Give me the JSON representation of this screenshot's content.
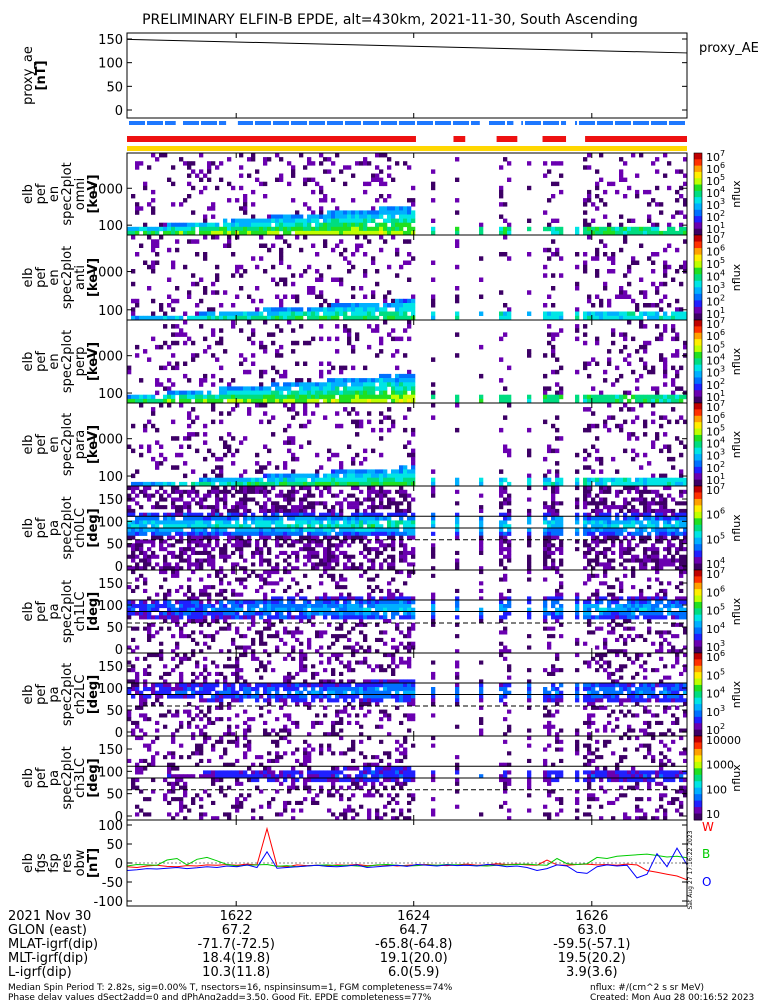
{
  "title": "PRELIMINARY ELFIN-B EPDE, alt=430km, 2021-11-30, South Ascending",
  "colors": {
    "ae_line": "#000000",
    "bar_blue": "#1e78ff",
    "bar_red": "#ee1111",
    "bar_yellow": "#ffd700",
    "mag_w": "#ff0000",
    "mag_b": "#00cc00",
    "mag_o": "#0000ff"
  },
  "colormap": [
    "#ffffff",
    "#3d0066",
    "#6a00b0",
    "#2020ff",
    "#0070ff",
    "#00b0ff",
    "#00e5e5",
    "#00dd80",
    "#20e020",
    "#bfff00",
    "#ffee00",
    "#ffa000",
    "#ff3000",
    "#c00000"
  ],
  "time_ticks": [
    "1622",
    "1624",
    "1626"
  ],
  "bars": {
    "blue_segments": [
      [
        0,
        0.087
      ],
      [
        0.1,
        0.177
      ],
      [
        0.198,
        0.63
      ],
      [
        0.645,
        0.69
      ],
      [
        0.704,
        0.784
      ],
      [
        0.8,
        1.0
      ]
    ],
    "red_segments": [
      [
        0,
        0.516
      ],
      [
        0.583,
        0.604
      ],
      [
        0.66,
        0.697
      ],
      [
        0.742,
        0.784
      ],
      [
        0.818,
        1.0
      ]
    ],
    "yellow_segments": [
      [
        0,
        1.0
      ]
    ]
  },
  "panels": [
    {
      "id": "ae",
      "ylabel": [
        "proxy_ae",
        "[nT]"
      ],
      "side_label": "proxy_AE",
      "yticks": [
        "150",
        "100",
        "50",
        "0"
      ]
    },
    {
      "id": "en1",
      "ylabel": [
        "elb",
        "pef",
        "en",
        "spec2plot",
        "omni",
        "[keV]"
      ],
      "yticks": [
        "1000",
        "100"
      ],
      "cb_label": "nflux",
      "cb_ticks": [
        [
          "10",
          "7"
        ],
        [
          "10",
          "6"
        ],
        [
          "10",
          "5"
        ],
        [
          "10",
          "4"
        ],
        [
          "10",
          "3"
        ],
        [
          "10",
          "2"
        ],
        [
          "10",
          "1"
        ]
      ]
    },
    {
      "id": "en2",
      "ylabel": [
        "elb",
        "pef",
        "en",
        "spec2plot",
        "anti",
        "[keV]"
      ],
      "yticks": [
        "1000",
        "100"
      ],
      "cb_label": "nflux",
      "cb_ticks": [
        [
          "10",
          "7"
        ],
        [
          "10",
          "6"
        ],
        [
          "10",
          "5"
        ],
        [
          "10",
          "4"
        ],
        [
          "10",
          "3"
        ],
        [
          "10",
          "2"
        ],
        [
          "10",
          "1"
        ]
      ]
    },
    {
      "id": "en3",
      "ylabel": [
        "elb",
        "pef",
        "en",
        "spec2plot",
        "perp",
        "[keV]"
      ],
      "yticks": [
        "1000",
        "100"
      ],
      "cb_label": "nflux",
      "cb_ticks": [
        [
          "10",
          "7"
        ],
        [
          "10",
          "6"
        ],
        [
          "10",
          "5"
        ],
        [
          "10",
          "4"
        ],
        [
          "10",
          "3"
        ],
        [
          "10",
          "2"
        ],
        [
          "10",
          "1"
        ]
      ]
    },
    {
      "id": "en4",
      "ylabel": [
        "elb",
        "pef",
        "en",
        "spec2plot",
        "para",
        "[keV]"
      ],
      "yticks": [
        "1000",
        "100"
      ],
      "cb_label": "nflux",
      "cb_ticks": [
        [
          "10",
          "7"
        ],
        [
          "10",
          "6"
        ],
        [
          "10",
          "5"
        ],
        [
          "10",
          "4"
        ],
        [
          "10",
          "3"
        ],
        [
          "10",
          "2"
        ],
        [
          "10",
          "1"
        ]
      ]
    },
    {
      "id": "pa0",
      "ylabel": [
        "elb",
        "pef",
        "pa",
        "spec2plot",
        "ch0LC",
        "[deg]"
      ],
      "yticks": [
        "150",
        "100",
        "50",
        "0"
      ],
      "cb_label": "nflux",
      "cb_ticks": [
        [
          "10",
          "7"
        ],
        [
          "10",
          "6"
        ],
        [
          "10",
          "5"
        ],
        [
          "10",
          "4"
        ]
      ]
    },
    {
      "id": "pa1",
      "ylabel": [
        "elb",
        "pef",
        "pa",
        "spec2plot",
        "ch1LC",
        "[deg]"
      ],
      "yticks": [
        "150",
        "100",
        "50",
        "0"
      ],
      "cb_label": "nflux",
      "cb_ticks": [
        [
          "10",
          "7"
        ],
        [
          "10",
          "6"
        ],
        [
          "10",
          "5"
        ],
        [
          "10",
          "4"
        ],
        [
          "10",
          "3"
        ]
      ]
    },
    {
      "id": "pa2",
      "ylabel": [
        "elb",
        "pef",
        "pa",
        "spec2plot",
        "ch2LC",
        "[deg]"
      ],
      "yticks": [
        "150",
        "100",
        "50",
        "0"
      ],
      "cb_label": "nflux",
      "cb_ticks": [
        [
          "10",
          "6"
        ],
        [
          "10",
          "5"
        ],
        [
          "10",
          "4"
        ],
        [
          "10",
          "3"
        ],
        [
          "10",
          "2"
        ]
      ]
    },
    {
      "id": "pa3",
      "ylabel": [
        "elb",
        "pef",
        "pa",
        "spec2plot",
        "ch3LC",
        "[deg]"
      ],
      "yticks": [
        "150",
        "100",
        "50",
        "0"
      ],
      "cb_label": "nflux",
      "cb_ticks": [
        [
          "10000",
          ""
        ],
        [
          "1000",
          ""
        ],
        [
          "100",
          ""
        ],
        [
          "10",
          ""
        ]
      ]
    },
    {
      "id": "mag",
      "ylabel": [
        "elb",
        "fgs",
        "fsp",
        "res",
        "obw",
        "[nT]"
      ],
      "yticks": [
        "100",
        "50",
        "0",
        "-50",
        "-100"
      ],
      "mag_labels": [
        "W",
        "B",
        "O"
      ],
      "side_small": "Sat Aug 27 17:16:22 2023"
    }
  ],
  "chart_data": {
    "type": "heatmap",
    "title": "PRELIMINARY ELFIN-B EPDE, alt=430km, 2021-11-30, South Ascending",
    "x": [
      "1622",
      "1624",
      "1626"
    ],
    "proxy_ae": {
      "x_fraction": [
        0,
        1
      ],
      "values": [
        155,
        126
      ],
      "ylim": [
        0,
        160
      ]
    },
    "energy_ylim_keV": [
      60,
      6000
    ],
    "pitch_angle_ylim_deg": [
      0,
      180
    ],
    "mag_residuals": {
      "ylim": [
        -110,
        110
      ],
      "series": [
        {
          "name": "W",
          "values": [
            -10,
            -12,
            -8,
            -6,
            -9,
            -10,
            -7,
            -8,
            -5,
            -6,
            -4,
            -6,
            -3,
            -5,
            92,
            -8,
            -10,
            -5,
            -7,
            -6,
            -8,
            -5,
            -6,
            -4,
            -7,
            -6,
            -5,
            -8,
            -6,
            -5,
            -4,
            -6,
            -7,
            -5,
            -3,
            -6,
            -5,
            -2,
            -4,
            -3,
            -5,
            -6,
            8,
            -5,
            -6,
            -4,
            -3,
            -5,
            -4,
            -6,
            -3,
            -5,
            -20,
            -25,
            -30,
            -35,
            -45
          ]
        },
        {
          "name": "B",
          "values": [
            -8,
            -4,
            -5,
            -6,
            8,
            12,
            -5,
            10,
            15,
            6,
            -4,
            -8,
            -6,
            -5,
            -4,
            -9,
            -7,
            -10,
            -8,
            -6,
            -5,
            -7,
            -6,
            -8,
            -9,
            -5,
            -4,
            -6,
            -8,
            -7,
            -5,
            -6,
            -4,
            -5,
            -6,
            -7,
            -8,
            -6,
            -5,
            -4,
            -3,
            -5,
            -6,
            12,
            -2,
            -4,
            -2,
            15,
            12,
            18,
            20,
            22,
            24,
            20,
            16,
            18,
            14
          ]
        },
        {
          "name": "O",
          "values": [
            -20,
            -18,
            -15,
            -16,
            -14,
            -12,
            -15,
            -13,
            -10,
            -12,
            -8,
            -10,
            -5,
            -12,
            30,
            -14,
            -12,
            -10,
            -8,
            -6,
            -9,
            -10,
            -8,
            -5,
            -12,
            -10,
            -8,
            -6,
            -9,
            -4,
            -6,
            -8,
            -5,
            -7,
            -6,
            -8,
            -4,
            -6,
            -10,
            -8,
            -12,
            -20,
            -15,
            -5,
            -8,
            -25,
            -28,
            -10,
            -5,
            -8,
            -6,
            -40,
            -30,
            25,
            -10,
            40,
            -5
          ]
        }
      ]
    }
  },
  "footer": {
    "rows": [
      {
        "label": "2021 Nov 30",
        "v": [
          "1622",
          "1624",
          "1626"
        ]
      },
      {
        "label": "GLON (east)",
        "v": [
          "67.2",
          "64.7",
          "63.0"
        ]
      },
      {
        "label": "MLAT-igrf(dip)",
        "v": [
          "-71.7(-72.5)",
          "-65.8(-64.8)",
          "-59.5(-57.1)"
        ]
      },
      {
        "label": "MLT-igrf(dip)",
        "v": [
          "18.4(19.8)",
          "19.1(20.0)",
          "19.5(20.2)"
        ]
      },
      {
        "label": "L-igrf(dip)",
        "v": [
          "10.3(11.8)",
          "6.0(5.9)",
          "3.9(3.6)"
        ]
      }
    ],
    "note1": "Median Spin Period T: 2.82s, sig=0.00% T, nsectors=16, nspinsinsum=1, FGM completeness=74%",
    "note2": "Phase delay values dSect2add=0 and dPhAng2add=3.50, Good Fit, EPDE completeness=77%",
    "note_right1": "nflux: #/(cm^2 s sr MeV)",
    "note_right2": "Created: Mon Aug 28 00:16:52 2023"
  }
}
